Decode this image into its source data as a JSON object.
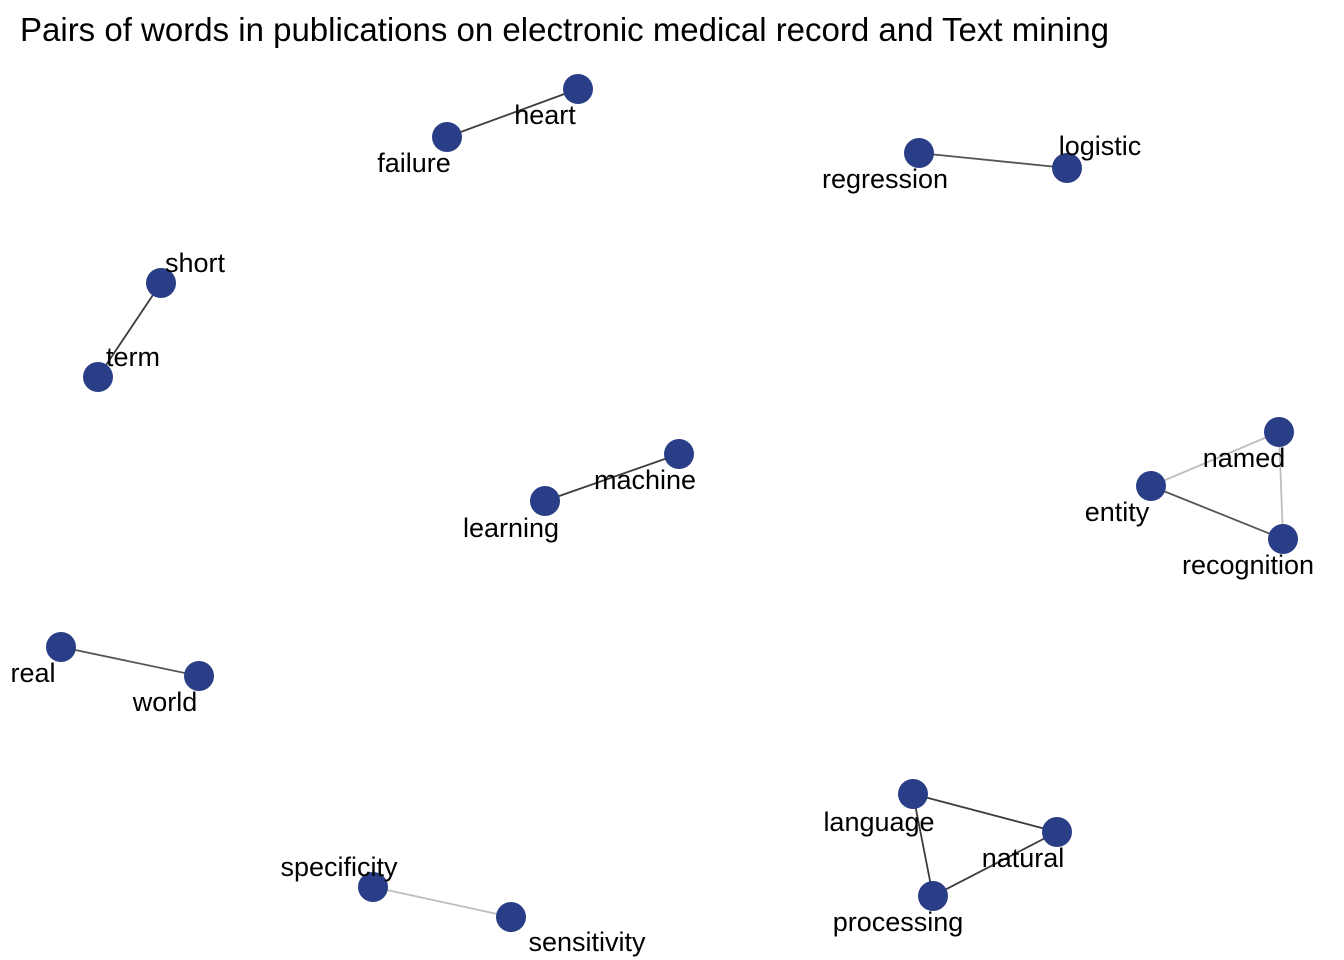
{
  "title": "Pairs of words in publications on electronic medical record and Text mining",
  "colors": {
    "node": "#2a3d87",
    "edge_dark": "#3b3b3b",
    "edge_mid": "#555555",
    "edge_light": "#bdbdbd"
  },
  "nodes": [
    {
      "id": "heart",
      "label": "heart"
    },
    {
      "id": "failure",
      "label": "failure"
    },
    {
      "id": "regression",
      "label": "regression"
    },
    {
      "id": "logistic",
      "label": "logistic"
    },
    {
      "id": "short",
      "label": "short"
    },
    {
      "id": "term",
      "label": "term"
    },
    {
      "id": "machine",
      "label": "machine"
    },
    {
      "id": "learning",
      "label": "learning"
    },
    {
      "id": "named",
      "label": "named"
    },
    {
      "id": "entity",
      "label": "entity"
    },
    {
      "id": "recognition",
      "label": "recognition"
    },
    {
      "id": "real",
      "label": "real"
    },
    {
      "id": "world",
      "label": "world"
    },
    {
      "id": "language",
      "label": "language"
    },
    {
      "id": "natural",
      "label": "natural"
    },
    {
      "id": "processing",
      "label": "processing"
    },
    {
      "id": "specificity",
      "label": "specificity"
    },
    {
      "id": "sensitivity",
      "label": "sensitivity"
    }
  ],
  "edges": [
    {
      "from": "failure",
      "to": "heart",
      "shade": "edge_dark"
    },
    {
      "from": "regression",
      "to": "logistic",
      "shade": "edge_mid"
    },
    {
      "from": "short",
      "to": "term",
      "shade": "edge_dark"
    },
    {
      "from": "learning",
      "to": "machine",
      "shade": "edge_dark"
    },
    {
      "from": "entity",
      "to": "named",
      "shade": "edge_light"
    },
    {
      "from": "named",
      "to": "recognition",
      "shade": "edge_light"
    },
    {
      "from": "entity",
      "to": "recognition",
      "shade": "edge_mid"
    },
    {
      "from": "real",
      "to": "world",
      "shade": "edge_mid"
    },
    {
      "from": "language",
      "to": "natural",
      "shade": "edge_dark"
    },
    {
      "from": "language",
      "to": "processing",
      "shade": "edge_dark"
    },
    {
      "from": "natural",
      "to": "processing",
      "shade": "edge_dark"
    },
    {
      "from": "specificity",
      "to": "sensitivity",
      "shade": "edge_light"
    }
  ]
}
